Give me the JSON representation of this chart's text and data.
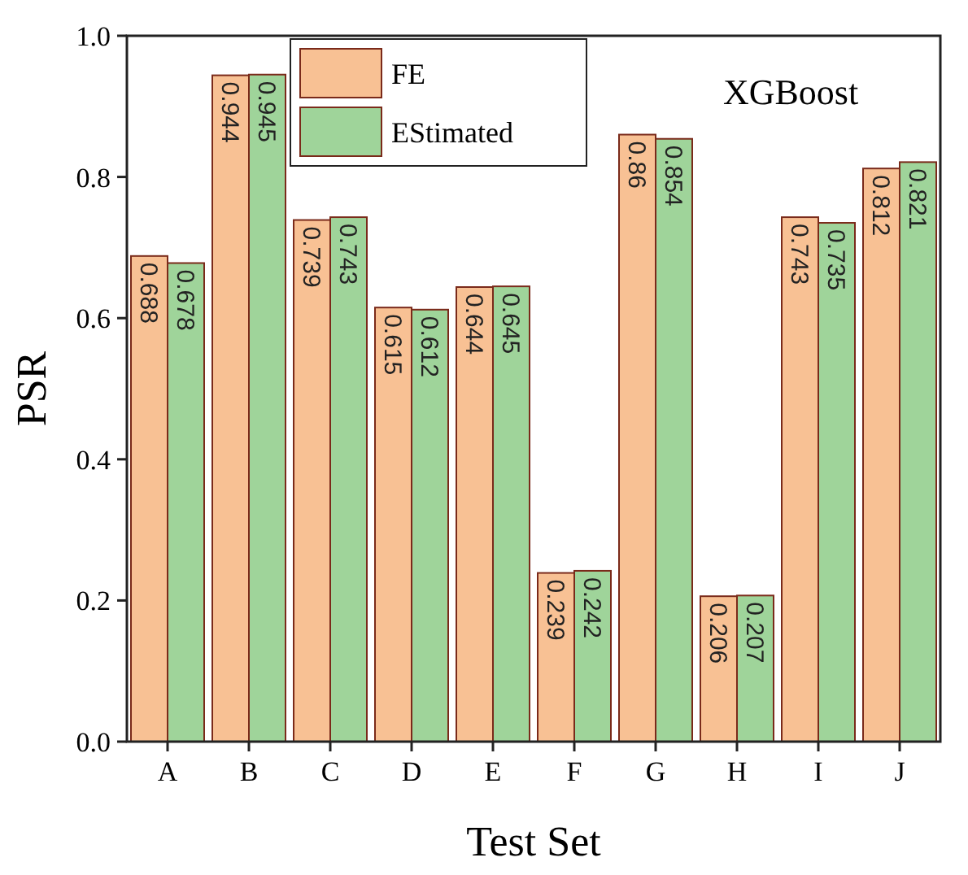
{
  "chart_data": {
    "type": "bar",
    "xlabel": "Test Set",
    "ylabel": "PSR",
    "annotations": [
      "XGBoost"
    ],
    "categories": [
      "A",
      "B",
      "C",
      "D",
      "E",
      "F",
      "G",
      "H",
      "I",
      "J"
    ],
    "series": [
      {
        "name": "FE",
        "color": "#f8c194",
        "values": [
          0.688,
          0.944,
          0.739,
          0.615,
          0.644,
          0.239,
          0.86,
          0.206,
          0.743,
          0.812
        ]
      },
      {
        "name": "EStimated",
        "color": "#9fd49a",
        "values": [
          0.678,
          0.945,
          0.743,
          0.612,
          0.645,
          0.242,
          0.854,
          0.207,
          0.735,
          0.821
        ]
      }
    ],
    "ylim": [
      0,
      1
    ],
    "yticks": [
      {
        "value": 0,
        "label": "0.0"
      },
      {
        "value": 0.2,
        "label": "0.2"
      },
      {
        "value": 0.4,
        "label": "0.4"
      },
      {
        "value": 0.6,
        "label": "0.6"
      },
      {
        "value": 0.8,
        "label": "0.8"
      },
      {
        "value": 1,
        "label": "1.0"
      }
    ],
    "data_labels": true,
    "legend": "top left",
    "grid": false
  }
}
